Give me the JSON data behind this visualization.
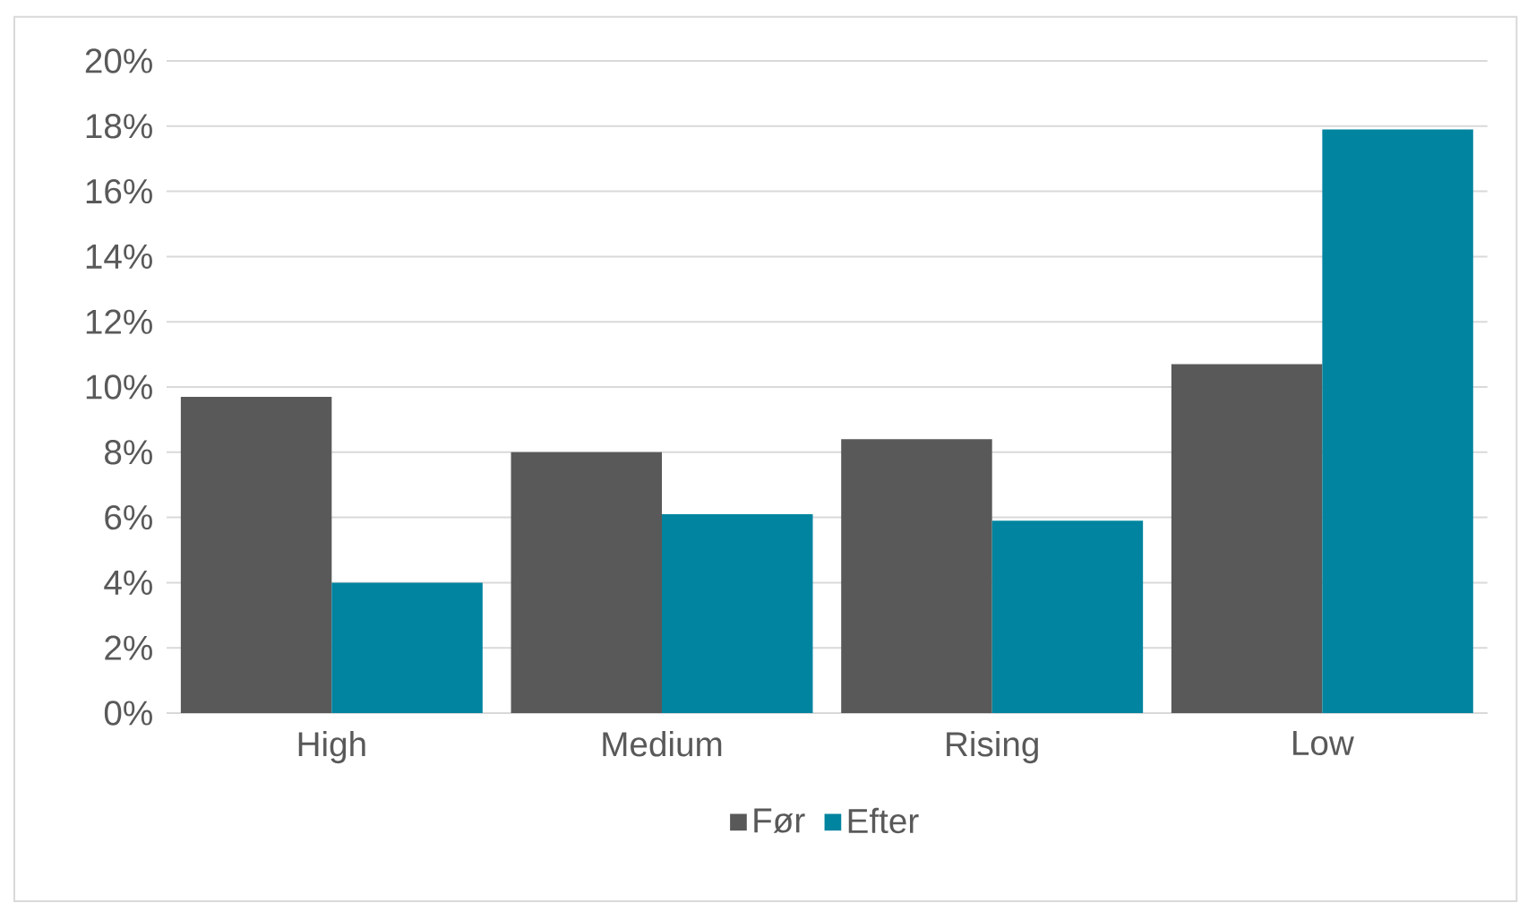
{
  "chart_data": {
    "type": "bar",
    "categories": [
      "High",
      "Medium",
      "Rising",
      "Low"
    ],
    "series": [
      {
        "name": "Før",
        "color": "#595959",
        "values": [
          9.7,
          8.0,
          8.4,
          10.7
        ]
      },
      {
        "name": "Efter",
        "color": "#00849f",
        "values": [
          4.0,
          6.1,
          5.9,
          17.9
        ]
      }
    ],
    "ylim": [
      0,
      20
    ],
    "yticks": [
      {
        "value": 0,
        "label": "0%"
      },
      {
        "value": 2,
        "label": "2%"
      },
      {
        "value": 4,
        "label": "4%"
      },
      {
        "value": 6,
        "label": "6%"
      },
      {
        "value": 8,
        "label": "8%"
      },
      {
        "value": 10,
        "label": "10%"
      },
      {
        "value": 12,
        "label": "12%"
      },
      {
        "value": 14,
        "label": "14%"
      },
      {
        "value": 16,
        "label": "16%"
      },
      {
        "value": 18,
        "label": "18%"
      },
      {
        "value": 20,
        "label": "20%"
      }
    ],
    "grid": "y",
    "legend": "bottom"
  }
}
